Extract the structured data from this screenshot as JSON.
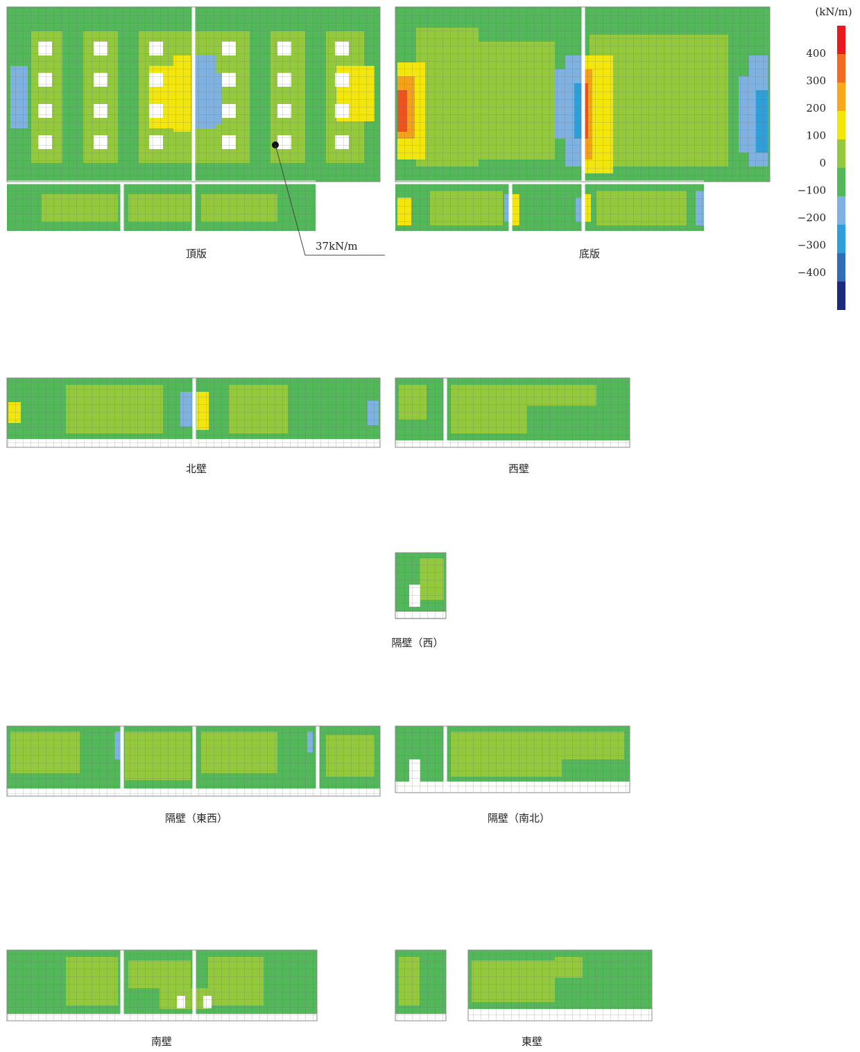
{
  "legend": {
    "unit": "(kN/m)",
    "ticks": [
      "400",
      "300",
      "200",
      "100",
      "0",
      "−100",
      "−200",
      "−300",
      "−400"
    ]
  },
  "annotation": "37kN/m",
  "panels": [
    {
      "label": "頂版"
    },
    {
      "label": "底版"
    },
    {
      "label": "北壁"
    },
    {
      "label": "西壁"
    },
    {
      "label": "隔壁（西）"
    },
    {
      "label": "隔壁（東西）"
    },
    {
      "label": "隔壁（南北）"
    },
    {
      "label": "南壁"
    },
    {
      "label": "東壁"
    }
  ]
}
